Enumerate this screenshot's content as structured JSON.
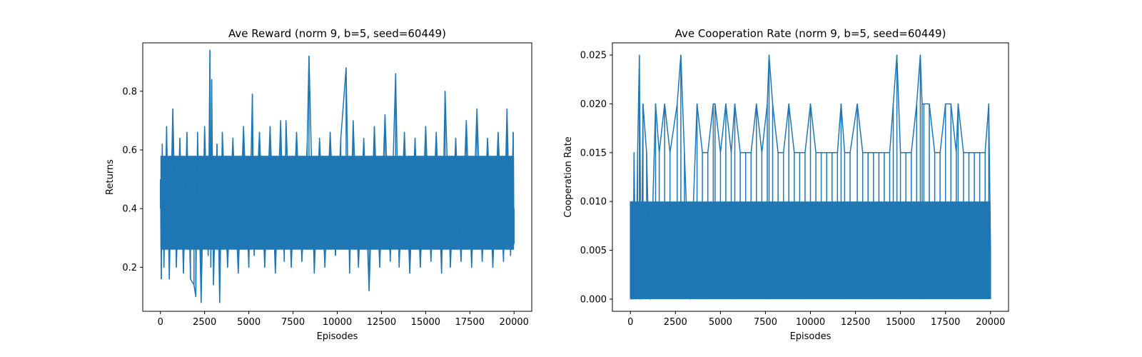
{
  "chart_data": [
    {
      "type": "line",
      "title": "Ave Reward (norm 9, b=5, seed=60449)",
      "xlabel": "Episodes",
      "ylabel": "Returns",
      "xlim": [
        -1000,
        21000
      ],
      "ylim": [
        0.05,
        0.965
      ],
      "xticks": [
        0,
        2500,
        5000,
        7500,
        10000,
        12500,
        15000,
        17500,
        20000
      ],
      "xtick_labels": [
        "0",
        "2500",
        "5000",
        "7500",
        "10000",
        "12500",
        "15000",
        "17500",
        "20000"
      ],
      "yticks": [
        0.2,
        0.4,
        0.6,
        0.8
      ],
      "ytick_labels": [
        "0.2",
        "0.4",
        "0.6",
        "0.8"
      ],
      "color": "#1f77b4",
      "series": [
        {
          "x": [
            0,
            50,
            100,
            200,
            350,
            500,
            700,
            900,
            1100,
            1300,
            1500,
            1700,
            1900,
            2000,
            2100,
            2300,
            2500,
            2700,
            2800,
            2850,
            2900,
            3000,
            3200,
            3350,
            3500,
            3800,
            4100,
            4400,
            4700,
            5000,
            5200,
            5300,
            5600,
            5900,
            6200,
            6500,
            6800,
            7000,
            7100,
            7400,
            7700,
            8000,
            8300,
            8400,
            8700,
            9000,
            9300,
            9600,
            9900,
            10200,
            10500,
            10700,
            10900,
            11200,
            11500,
            11800,
            12100,
            12400,
            12700,
            13000,
            13300,
            13500,
            13800,
            14100,
            14400,
            14700,
            15000,
            15300,
            15600,
            15900,
            16100,
            16400,
            16700,
            17000,
            17300,
            17600,
            17900,
            18200,
            18500,
            18800,
            19100,
            19400,
            19600,
            19800,
            19950,
            20000
          ],
          "y": [
            0.5,
            0.16,
            0.62,
            0.2,
            0.68,
            0.16,
            0.74,
            0.2,
            0.64,
            0.18,
            0.66,
            0.16,
            0.14,
            0.1,
            0.66,
            0.08,
            0.68,
            0.24,
            0.94,
            0.2,
            0.84,
            0.14,
            0.62,
            0.08,
            0.66,
            0.2,
            0.64,
            0.18,
            0.68,
            0.2,
            0.79,
            0.24,
            0.66,
            0.2,
            0.68,
            0.18,
            0.7,
            0.22,
            0.7,
            0.2,
            0.66,
            0.22,
            0.62,
            0.92,
            0.18,
            0.64,
            0.2,
            0.66,
            0.24,
            0.64,
            0.88,
            0.18,
            0.7,
            0.2,
            0.64,
            0.12,
            0.68,
            0.2,
            0.72,
            0.22,
            0.86,
            0.2,
            0.66,
            0.18,
            0.64,
            0.2,
            0.68,
            0.22,
            0.66,
            0.18,
            0.8,
            0.2,
            0.64,
            0.22,
            0.7,
            0.2,
            0.74,
            0.22,
            0.64,
            0.2,
            0.66,
            0.22,
            0.74,
            0.24,
            0.66,
            0.28
          ]
        }
      ]
    },
    {
      "type": "line",
      "title": "Ave Cooperation Rate (norm 9, b=5, seed=60449)",
      "xlabel": "Episodes",
      "ylabel": "Cooperation Rate",
      "xlim": [
        -1000,
        21000
      ],
      "ylim": [
        -0.00125,
        0.02625
      ],
      "xticks": [
        0,
        2500,
        5000,
        7500,
        10000,
        12500,
        15000,
        17500,
        20000
      ],
      "xtick_labels": [
        "0",
        "2500",
        "5000",
        "7500",
        "10000",
        "12500",
        "15000",
        "17500",
        "20000"
      ],
      "yticks": [
        0.0,
        0.005,
        0.01,
        0.015,
        0.02,
        0.025
      ],
      "ytick_labels": [
        "0.000",
        "0.005",
        "0.010",
        "0.015",
        "0.020",
        "0.025"
      ],
      "color": "#1f77b4",
      "series": [
        {
          "x": [
            0,
            50,
            100,
            150,
            200,
            300,
            400,
            500,
            600,
            700,
            900,
            1100,
            1400,
            1600,
            1900,
            2200,
            2600,
            2800,
            3000,
            3300,
            3700,
            4000,
            4300,
            4600,
            4700,
            5000,
            5300,
            5600,
            5800,
            6100,
            6400,
            6700,
            7000,
            7300,
            7600,
            7700,
            7900,
            8200,
            8500,
            8800,
            9100,
            9400,
            9700,
            10000,
            10300,
            10600,
            10900,
            11200,
            11500,
            11700,
            11900,
            12200,
            12600,
            12900,
            13200,
            13500,
            13800,
            14100,
            14400,
            14600,
            14800,
            15000,
            15300,
            15600,
            15900,
            16100,
            16200,
            16300,
            16600,
            16900,
            17200,
            17500,
            17800,
            18100,
            18200,
            18500,
            18800,
            19100,
            19400,
            19700,
            19900,
            20000
          ],
          "y": [
            0.01,
            0.0,
            0.01,
            0.0,
            0.015,
            0.0,
            0.015,
            0.025,
            0.0,
            0.02,
            0.015,
            0.0,
            0.02,
            0.015,
            0.02,
            0.015,
            0.02,
            0.025,
            0.015,
            0.0,
            0.02,
            0.015,
            0.015,
            0.02,
            0.02,
            0.015,
            0.02,
            0.015,
            0.02,
            0.015,
            0.015,
            0.015,
            0.02,
            0.015,
            0.02,
            0.025,
            0.02,
            0.015,
            0.015,
            0.02,
            0.015,
            0.015,
            0.015,
            0.02,
            0.015,
            0.015,
            0.015,
            0.015,
            0.015,
            0.02,
            0.015,
            0.015,
            0.02,
            0.015,
            0.015,
            0.015,
            0.015,
            0.015,
            0.015,
            0.02,
            0.025,
            0.015,
            0.015,
            0.015,
            0.02,
            0.025,
            0.02,
            0.02,
            0.02,
            0.015,
            0.015,
            0.02,
            0.02,
            0.015,
            0.02,
            0.015,
            0.015,
            0.015,
            0.015,
            0.015,
            0.02,
            0.005
          ]
        }
      ]
    }
  ]
}
